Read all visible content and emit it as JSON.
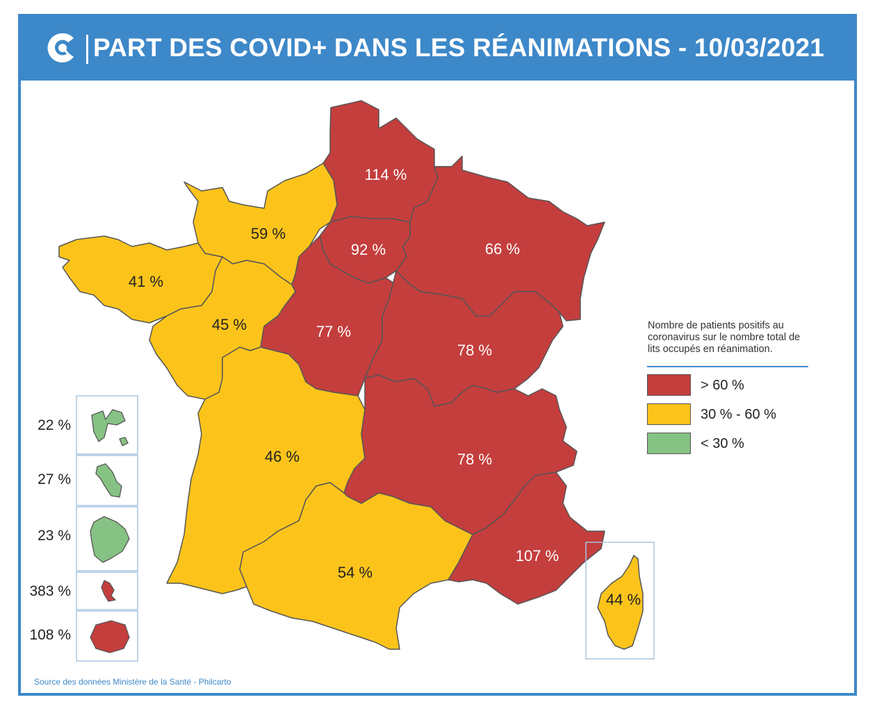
{
  "header": {
    "title": "PART DES COVID+ DANS LES RÉANIMATIONS - 10/03/2021"
  },
  "colors": {
    "header_bg": "#3d88c9",
    "high": "#c43e3d",
    "medium": "#fcc41b",
    "low": "#86c284",
    "border": "#555555"
  },
  "regions": [
    {
      "name": "Hauts-de-France",
      "value": "114 %",
      "category": "high"
    },
    {
      "name": "Normandie",
      "value": "59 %",
      "category": "medium"
    },
    {
      "name": "Île-de-France",
      "value": "92 %",
      "category": "high"
    },
    {
      "name": "Grand Est",
      "value": "66 %",
      "category": "high"
    },
    {
      "name": "Bretagne",
      "value": "41 %",
      "category": "medium"
    },
    {
      "name": "Pays de la Loire",
      "value": "45 %",
      "category": "medium"
    },
    {
      "name": "Centre-Val de Loire",
      "value": "77 %",
      "category": "high"
    },
    {
      "name": "Bourgogne-Franche-Comté",
      "value": "78 %",
      "category": "high"
    },
    {
      "name": "Nouvelle-Aquitaine",
      "value": "46 %",
      "category": "medium"
    },
    {
      "name": "Auvergne-Rhône-Alpes",
      "value": "78 %",
      "category": "high"
    },
    {
      "name": "Occitanie",
      "value": "54 %",
      "category": "medium"
    },
    {
      "name": "Provence-Alpes-Côte d'Azur",
      "value": "107 %",
      "category": "high"
    },
    {
      "name": "Corse",
      "value": "44 %",
      "category": "medium"
    }
  ],
  "overseas": [
    {
      "name": "Guadeloupe",
      "value": "22 %",
      "category": "low"
    },
    {
      "name": "Martinique",
      "value": "27 %",
      "category": "low"
    },
    {
      "name": "Guyane",
      "value": "23 %",
      "category": "low"
    },
    {
      "name": "Mayotte",
      "value": "383 %",
      "category": "high"
    },
    {
      "name": "La Réunion",
      "value": "108 %",
      "category": "high"
    }
  ],
  "legend": {
    "title": "Nombre de patients positifs au coronavirus sur le nombre total de lits occupés en réanimation.",
    "items": [
      {
        "label": "> 60 %",
        "category": "high"
      },
      {
        "label": "30 % - 60 %",
        "category": "medium"
      },
      {
        "label": "< 30 %",
        "category": "low"
      }
    ]
  },
  "source": "Source des données Ministère de la Santé - Philcarto"
}
